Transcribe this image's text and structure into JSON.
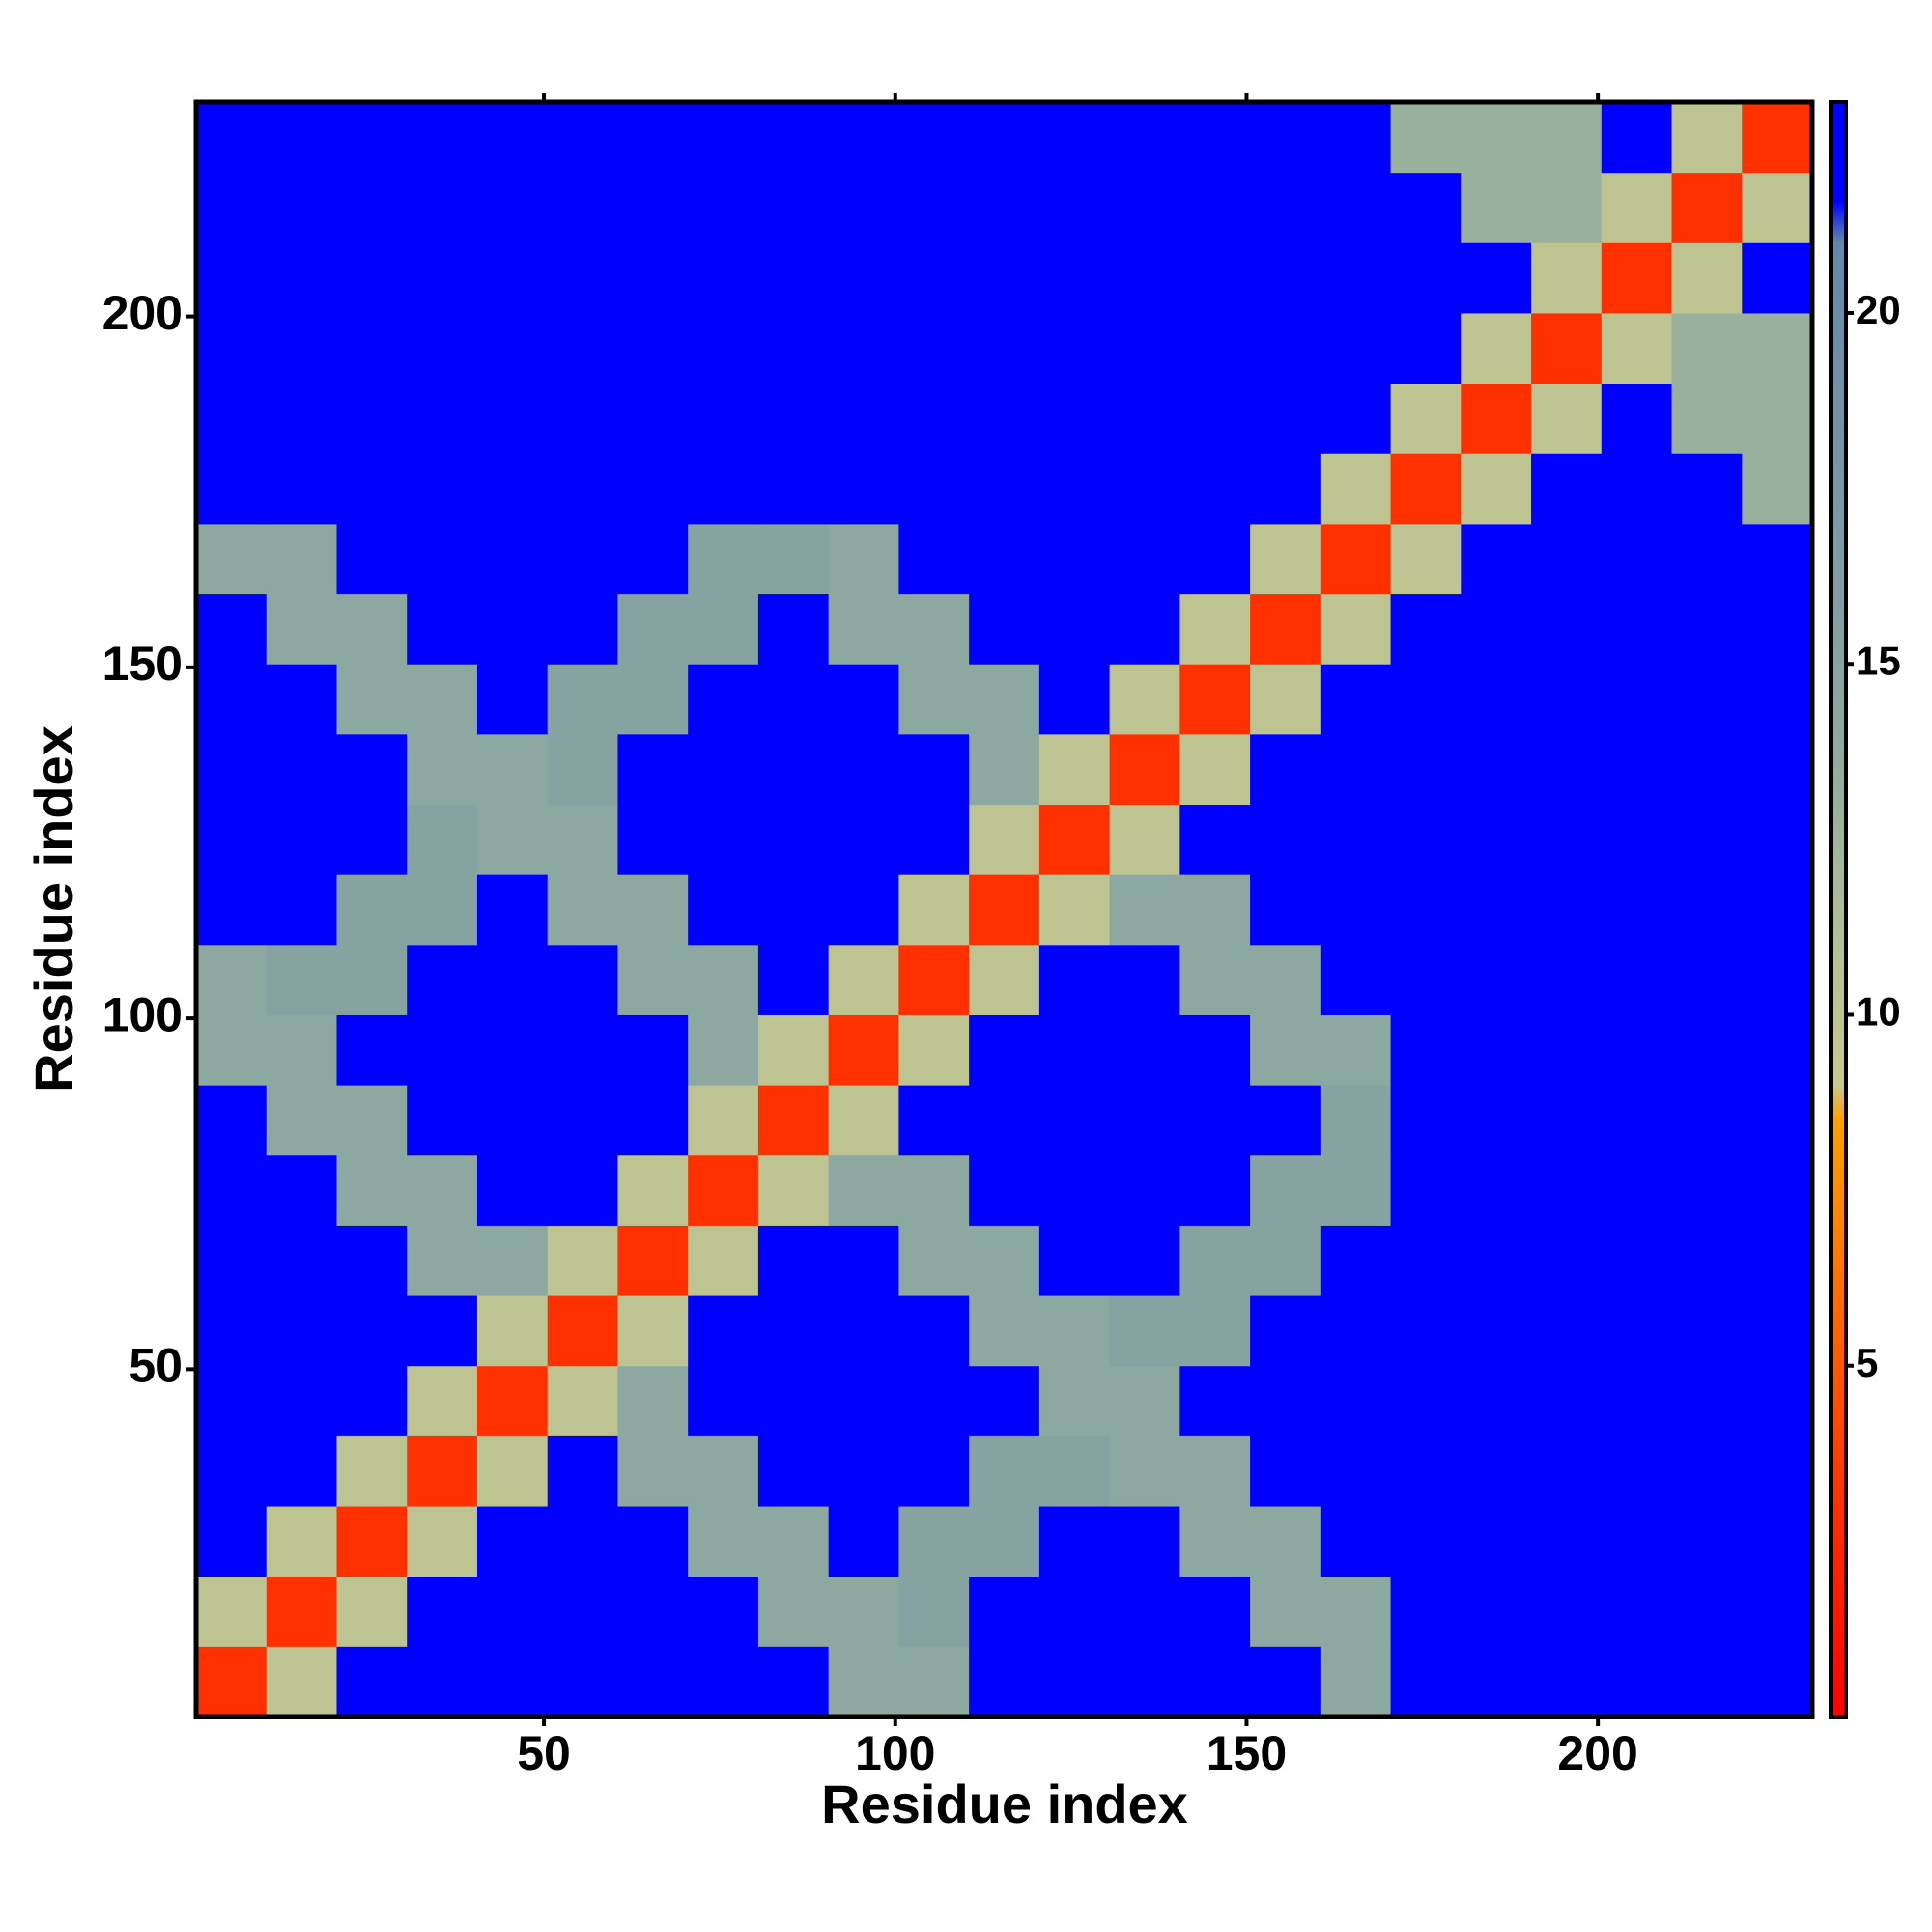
{
  "chart_data": {
    "type": "heatmap",
    "xlabel": "Residue index",
    "ylabel": "Residue index",
    "xlim": [
      0.5,
      230.5
    ],
    "ylim": [
      0.5,
      230.5
    ],
    "xticks": [
      50,
      100,
      150,
      200
    ],
    "yticks": [
      50,
      100,
      150,
      200
    ],
    "bins": [
      0.5,
      10.5,
      20.5,
      30.5,
      40.5,
      50.5,
      60.5,
      70.5,
      80.5,
      90.5,
      100.5,
      110.5,
      120.5,
      130.5,
      140.5,
      150.5,
      160.5,
      170.5,
      180.5,
      190.5,
      200.5,
      210.5,
      220.5,
      230.5
    ],
    "zlim": [
      0,
      23
    ],
    "zticks": [
      5,
      10,
      15,
      20
    ],
    "colorscale": [
      {
        "value": 0,
        "color": "#ff0000"
      },
      {
        "value": 3,
        "color": "#ff3000"
      },
      {
        "value": 8.5,
        "color": "#ffa000"
      },
      {
        "value": 9,
        "color": "#c8c88c"
      },
      {
        "value": 11,
        "color": "#b4c096"
      },
      {
        "value": 14,
        "color": "#8ca8a0"
      },
      {
        "value": 21,
        "color": "#6488aa"
      },
      {
        "value": 21.6,
        "color": "#0000ff"
      },
      {
        "value": 23,
        "color": "#0000ff"
      }
    ],
    "z": [
      [
        3,
        10,
        22,
        22,
        22,
        22,
        22,
        22,
        22,
        14,
        14,
        22,
        22,
        22,
        22,
        22,
        14,
        22,
        22,
        22,
        22,
        22,
        22
      ],
      [
        10,
        3,
        10,
        22,
        22,
        22,
        22,
        22,
        14,
        14,
        15,
        22,
        22,
        22,
        22,
        14,
        14,
        22,
        22,
        22,
        22,
        22,
        22
      ],
      [
        22,
        10,
        3,
        10,
        22,
        22,
        22,
        14,
        14,
        22,
        15,
        15,
        22,
        22,
        14,
        14,
        22,
        22,
        22,
        22,
        22,
        22,
        22
      ],
      [
        22,
        22,
        10,
        3,
        10,
        22,
        14,
        14,
        22,
        22,
        22,
        15,
        15,
        14,
        14,
        22,
        22,
        22,
        22,
        22,
        22,
        22,
        22
      ],
      [
        22,
        22,
        22,
        10,
        3,
        10,
        14,
        22,
        22,
        22,
        22,
        22,
        14,
        14,
        22,
        22,
        22,
        22,
        22,
        22,
        22,
        22,
        22
      ],
      [
        22,
        22,
        22,
        22,
        10,
        3,
        10,
        22,
        22,
        22,
        22,
        14,
        14,
        15,
        15,
        22,
        22,
        22,
        22,
        22,
        22,
        22,
        22
      ],
      [
        22,
        22,
        22,
        14,
        14,
        10,
        3,
        10,
        22,
        22,
        14,
        14,
        22,
        22,
        15,
        15,
        22,
        22,
        22,
        22,
        22,
        22,
        22
      ],
      [
        22,
        22,
        14,
        14,
        22,
        22,
        10,
        3,
        10,
        14,
        14,
        22,
        22,
        22,
        22,
        15,
        15,
        22,
        22,
        22,
        22,
        22,
        22
      ],
      [
        22,
        14,
        14,
        22,
        22,
        22,
        22,
        10,
        3,
        10,
        22,
        22,
        22,
        22,
        22,
        22,
        15,
        22,
        22,
        22,
        22,
        22,
        22
      ],
      [
        14,
        14,
        22,
        22,
        22,
        22,
        22,
        14,
        10,
        3,
        10,
        22,
        22,
        22,
        22,
        14,
        14,
        22,
        22,
        22,
        22,
        22,
        22
      ],
      [
        14,
        15,
        15,
        22,
        22,
        22,
        14,
        14,
        22,
        10,
        3,
        10,
        22,
        22,
        14,
        14,
        22,
        22,
        22,
        22,
        22,
        22,
        22
      ],
      [
        22,
        22,
        15,
        15,
        22,
        14,
        14,
        22,
        22,
        22,
        10,
        3,
        10,
        14,
        14,
        22,
        22,
        22,
        22,
        22,
        22,
        22,
        22
      ],
      [
        22,
        22,
        22,
        15,
        14,
        14,
        22,
        22,
        22,
        22,
        22,
        10,
        3,
        10,
        22,
        22,
        22,
        22,
        22,
        22,
        22,
        22,
        22
      ],
      [
        22,
        22,
        22,
        14,
        14,
        15,
        22,
        22,
        22,
        22,
        22,
        14,
        10,
        3,
        10,
        22,
        22,
        22,
        22,
        22,
        22,
        22,
        22
      ],
      [
        22,
        22,
        14,
        14,
        22,
        15,
        15,
        22,
        22,
        22,
        14,
        14,
        22,
        10,
        3,
        10,
        22,
        22,
        22,
        22,
        22,
        22,
        22
      ],
      [
        22,
        14,
        14,
        22,
        22,
        22,
        15,
        15,
        22,
        14,
        14,
        22,
        22,
        22,
        10,
        3,
        10,
        22,
        22,
        22,
        22,
        22,
        22
      ],
      [
        14,
        14,
        22,
        22,
        22,
        22,
        22,
        15,
        15,
        14,
        22,
        22,
        22,
        22,
        22,
        10,
        3,
        10,
        22,
        22,
        22,
        22,
        22
      ],
      [
        22,
        22,
        22,
        22,
        22,
        22,
        22,
        22,
        22,
        22,
        22,
        22,
        22,
        22,
        22,
        22,
        10,
        3,
        10,
        22,
        22,
        22,
        13
      ],
      [
        22,
        22,
        22,
        22,
        22,
        22,
        22,
        22,
        22,
        22,
        22,
        22,
        22,
        22,
        22,
        22,
        22,
        10,
        3,
        10,
        22,
        13,
        13
      ],
      [
        22,
        22,
        22,
        22,
        22,
        22,
        22,
        22,
        22,
        22,
        22,
        22,
        22,
        22,
        22,
        22,
        22,
        22,
        10,
        3,
        10,
        13,
        13
      ],
      [
        22,
        22,
        22,
        22,
        22,
        22,
        22,
        22,
        22,
        22,
        22,
        22,
        22,
        22,
        22,
        22,
        22,
        22,
        22,
        10,
        3,
        10,
        22
      ],
      [
        22,
        22,
        22,
        22,
        22,
        22,
        22,
        22,
        22,
        22,
        22,
        22,
        22,
        22,
        22,
        22,
        22,
        22,
        13,
        13,
        10,
        3,
        10
      ],
      [
        22,
        22,
        22,
        22,
        22,
        22,
        22,
        22,
        22,
        22,
        22,
        22,
        22,
        22,
        22,
        22,
        22,
        13,
        13,
        13,
        22,
        10,
        3
      ]
    ]
  }
}
